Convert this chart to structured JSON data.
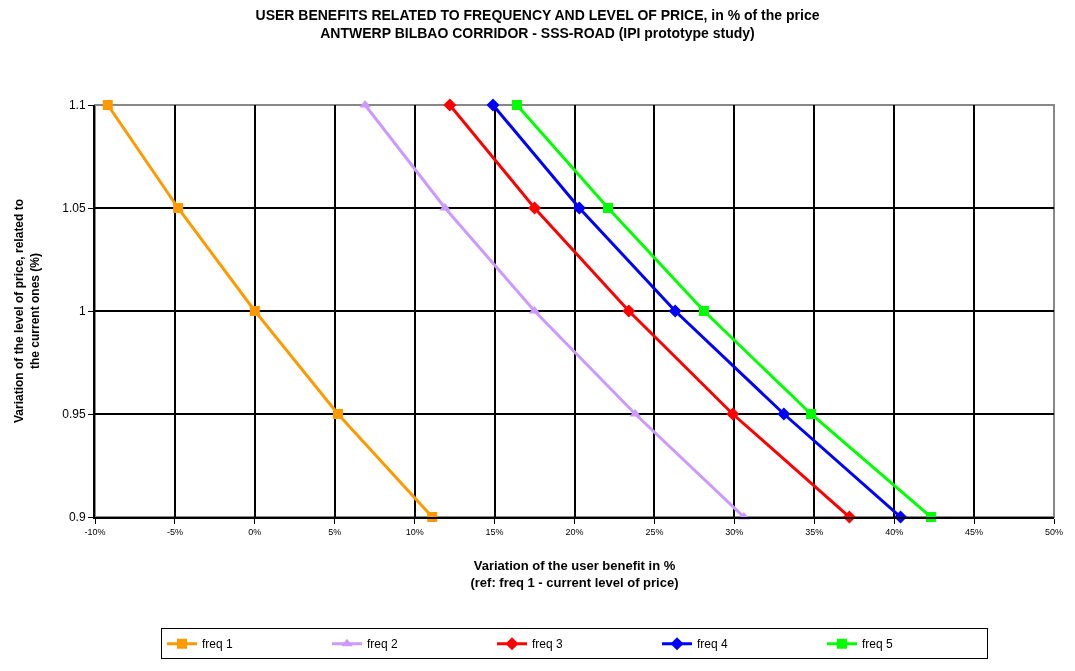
{
  "chart_data": {
    "type": "line",
    "title": "USER BENEFITS RELATED TO FREQUENCY AND LEVEL OF PRICE, in % of the price",
    "subtitle": "ANTWERP BILBAO CORRIDOR - SSS-ROAD (IPI prototype study)",
    "xlabel": "Variation of the user benefit in %\n(ref: freq 1 - current level of price)",
    "ylabel": "Variation of the level of price, related to\nthe current ones (%)",
    "series": [
      {
        "name": "freq 1",
        "color": "#ff9900",
        "marker": "square",
        "x": [
          -9.2,
          -4.8,
          0,
          5.2,
          11.1
        ],
        "values": [
          1.1,
          1.05,
          1,
          0.95,
          0.9
        ]
      },
      {
        "name": "freq 2",
        "color": "#cc99ff",
        "marker": "triangle",
        "x": [
          6.9,
          11.9,
          17.5,
          23.8,
          30.6
        ],
        "values": [
          1.1,
          1.05,
          1,
          0.95,
          0.9
        ]
      },
      {
        "name": "freq 3",
        "color": "#ff0000",
        "marker": "diamond",
        "x": [
          12.2,
          17.5,
          23.4,
          29.9,
          37.2
        ],
        "values": [
          1.1,
          1.05,
          1,
          0.95,
          0.9
        ]
      },
      {
        "name": "freq 4",
        "color": "#0000ff",
        "marker": "diamond",
        "x": [
          14.9,
          20.3,
          26.3,
          33.1,
          40.4
        ],
        "values": [
          1.1,
          1.05,
          1,
          0.95,
          0.9
        ]
      },
      {
        "name": "freq 5",
        "color": "#00ff00",
        "marker": "square",
        "x": [
          16.4,
          22.1,
          28.1,
          34.8,
          42.3
        ],
        "values": [
          1.1,
          1.05,
          1,
          0.95,
          0.9
        ]
      }
    ],
    "xlim": [
      -10,
      50
    ],
    "xticks": [
      {
        "value": -10,
        "label": "-10%"
      },
      {
        "value": -5,
        "label": "-5%"
      },
      {
        "value": 0,
        "label": "0%"
      },
      {
        "value": 5,
        "label": "5%"
      },
      {
        "value": 10,
        "label": "10%"
      },
      {
        "value": 15,
        "label": "15%"
      },
      {
        "value": 20,
        "label": "20%"
      },
      {
        "value": 25,
        "label": "25%"
      },
      {
        "value": 30,
        "label": "30%"
      },
      {
        "value": 35,
        "label": "35%"
      },
      {
        "value": 40,
        "label": "40%"
      },
      {
        "value": 45,
        "label": "45%"
      },
      {
        "value": 50,
        "label": "50%"
      }
    ],
    "ylim": [
      0.9,
      1.1
    ],
    "yticks": [
      0.9,
      0.95,
      1,
      1.05,
      1.1
    ],
    "grid": true,
    "legend": "bottom",
    "line_style": "solid"
  }
}
